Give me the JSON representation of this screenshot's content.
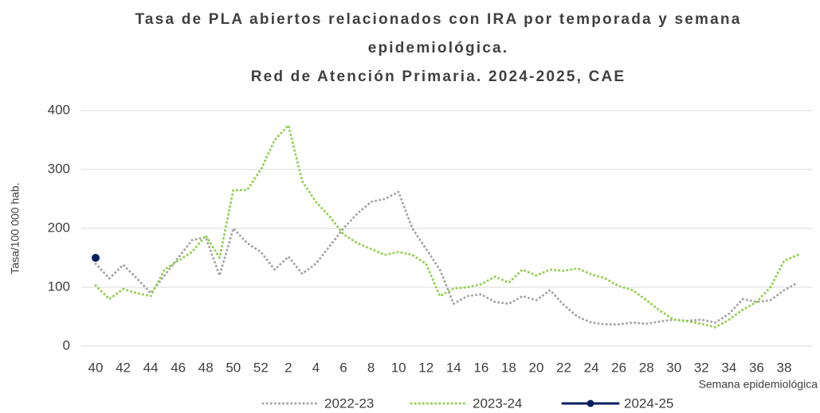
{
  "chart_data": {
    "type": "line",
    "title": [
      "Tasa de PLA abiertos relacionados con IRA por temporada y semana",
      "epidemiológica."
    ],
    "subtitle": "Red de Atención Primaria. 2024-2025, CAE",
    "y_label": "Tasa/100 000 hab.",
    "x_label": "Semana epidemiológica",
    "categories": [
      "40",
      null,
      "42",
      null,
      "44",
      null,
      "46",
      null,
      "48",
      null,
      "50",
      null,
      "52",
      null,
      "2",
      null,
      "4",
      null,
      "6",
      null,
      "8",
      null,
      "10",
      null,
      "12",
      null,
      "14",
      null,
      "16",
      null,
      "18",
      null,
      "20",
      null,
      "22",
      null,
      "24",
      null,
      "26",
      null,
      "28",
      null,
      "30",
      null,
      "32",
      null,
      "34",
      null,
      "36",
      null,
      "38",
      null
    ],
    "ylim": [
      0,
      400
    ],
    "yticks": [
      0,
      100,
      200,
      300,
      400
    ],
    "grid": true,
    "legend": "bottom",
    "series": [
      {
        "name": "2022-23",
        "color": "#a6a6a6",
        "style": "dotted",
        "values": [
          140,
          115,
          138,
          115,
          90,
          120,
          150,
          180,
          185,
          120,
          200,
          175,
          160,
          130,
          152,
          123,
          140,
          170,
          200,
          225,
          245,
          250,
          262,
          200,
          165,
          130,
          72,
          85,
          88,
          75,
          72,
          85,
          78,
          95,
          70,
          50,
          40,
          37,
          37,
          40,
          38,
          42,
          45,
          43,
          45,
          40,
          55,
          80,
          75,
          78,
          95,
          108
        ]
      },
      {
        "name": "2023-24",
        "color": "#92d050",
        "style": "dotted",
        "values": [
          103,
          80,
          97,
          90,
          85,
          130,
          145,
          160,
          188,
          150,
          265,
          265,
          300,
          350,
          375,
          280,
          245,
          220,
          190,
          175,
          165,
          155,
          160,
          155,
          140,
          85,
          98,
          100,
          105,
          118,
          108,
          130,
          120,
          130,
          128,
          132,
          122,
          115,
          102,
          95,
          78,
          60,
          45,
          42,
          38,
          32,
          45,
          62,
          75,
          100,
          145,
          155
        ]
      },
      {
        "name": "2024-25",
        "color": "#002060",
        "style": "solid",
        "marker": true,
        "values": [
          150,
          null,
          null,
          null,
          null,
          null,
          null,
          null,
          null,
          null,
          null,
          null,
          null,
          null,
          null,
          null,
          null,
          null,
          null,
          null,
          null,
          null,
          null,
          null,
          null,
          null,
          null,
          null,
          null,
          null,
          null,
          null,
          null,
          null,
          null,
          null,
          null,
          null,
          null,
          null,
          null,
          null,
          null,
          null,
          null,
          null,
          null,
          null,
          null,
          null,
          null,
          null
        ]
      }
    ]
  }
}
